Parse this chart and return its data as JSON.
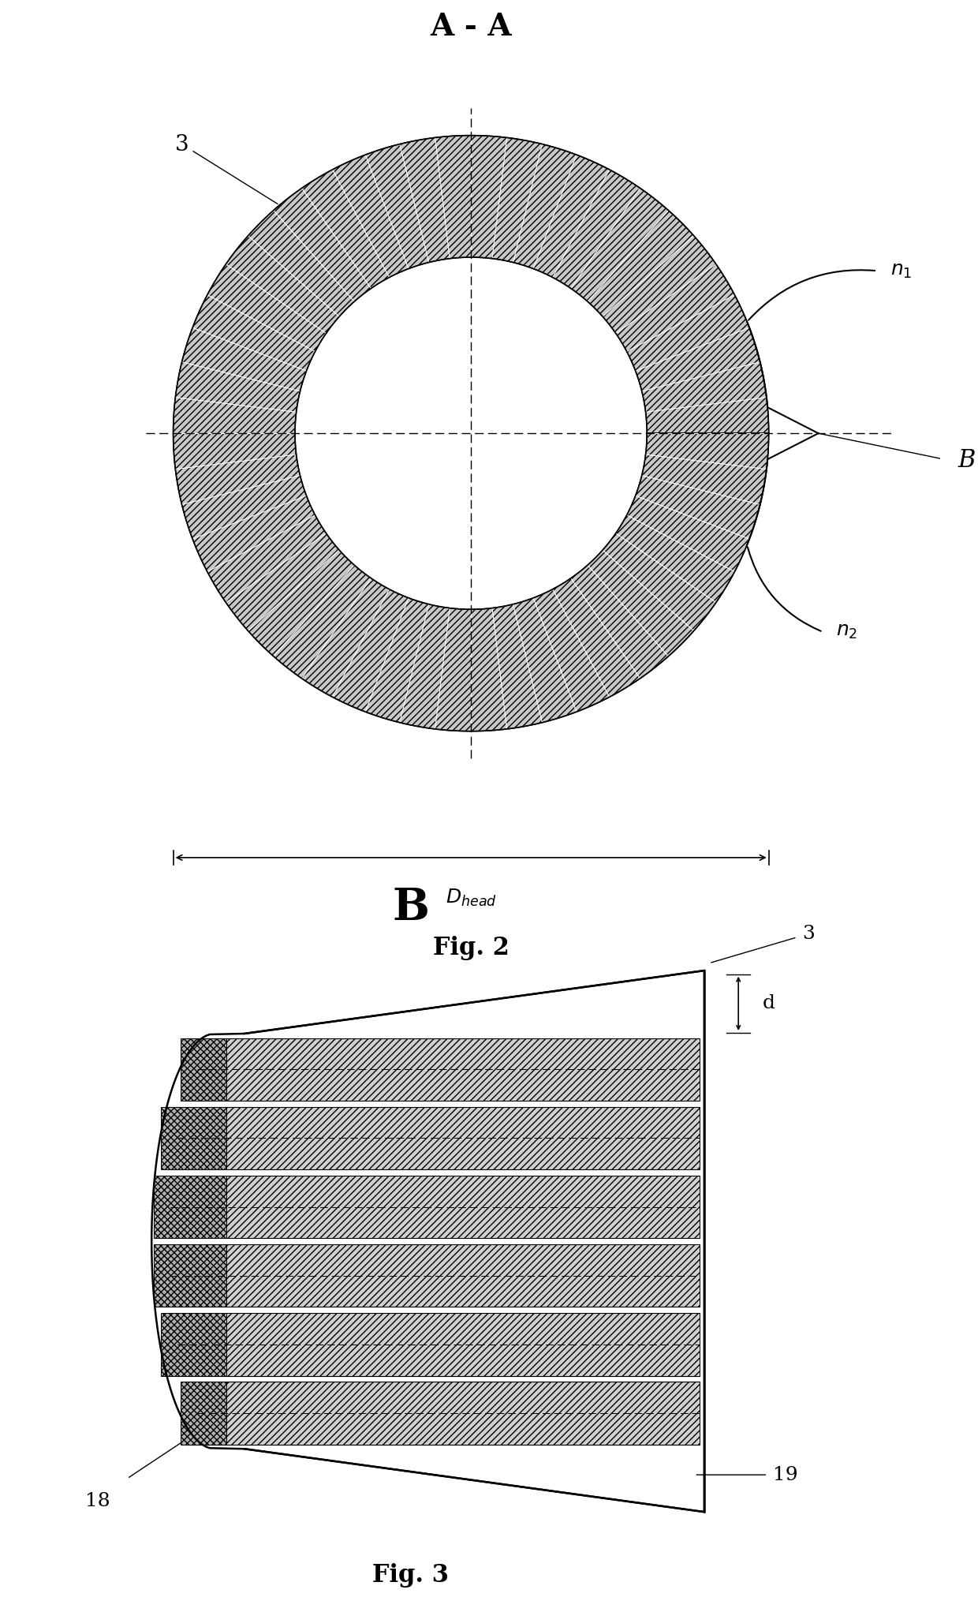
{
  "fig_width": 12.4,
  "fig_height": 20.43,
  "dpi": 100,
  "bg_color": "#ffffff",
  "line_color": "#000000",
  "fill_color": "#c8c8c8",
  "fig2_title": "A - A",
  "fig2_caption": "Fig. 2",
  "fig3_title": "B",
  "fig3_caption": "Fig. 3",
  "label_3": "3",
  "label_n1": "n₁",
  "label_n2": "n₂",
  "label_B": "B",
  "label_Dhead": "D",
  "label_d": "d",
  "label_18": "18",
  "label_19": "19"
}
